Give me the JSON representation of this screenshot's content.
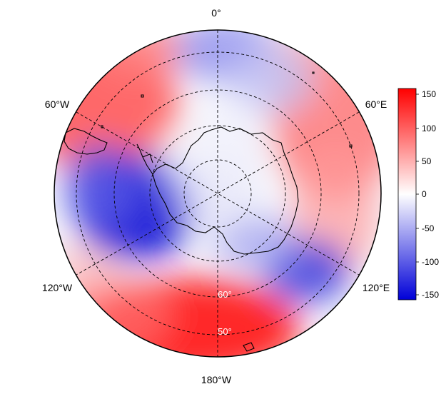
{
  "map": {
    "projection": "south polar stereographic",
    "center": "South Pole",
    "longitude_labels": {
      "top": "0°",
      "upper_left": "60°W",
      "upper_right": "60°E",
      "lower_left": "120°W",
      "lower_right": "120°E",
      "bottom": "180°W"
    },
    "latitude_labels": [
      "60°",
      "50°"
    ],
    "graticule": {
      "meridian_step_deg": 60,
      "latitude_circles_deg": [
        -80,
        -70,
        -60,
        -50
      ],
      "style": "dashed"
    },
    "coastlines": [
      "Antarctica",
      "Tip of South America",
      "Sub-Antarctic islands"
    ]
  },
  "colorbar": {
    "ticks": [
      "150",
      "100",
      "50",
      "0",
      "-50",
      "-100",
      "-150"
    ],
    "range": [
      -160,
      160
    ],
    "colors": {
      "max": "#ff0000",
      "zero": "#ffffff",
      "min": "#0000d8"
    }
  },
  "field": {
    "description_type": "anomaly field",
    "positive_regions": [
      "Pacific sector near 180°",
      "60°W sector",
      "Indian Ocean sector near 60°E"
    ],
    "negative_regions": [
      "Amundsen/Bellingshausen sector near 100°W",
      "East Antarctic coast near 120°E",
      "Atlantic sector near 0°"
    ]
  }
}
